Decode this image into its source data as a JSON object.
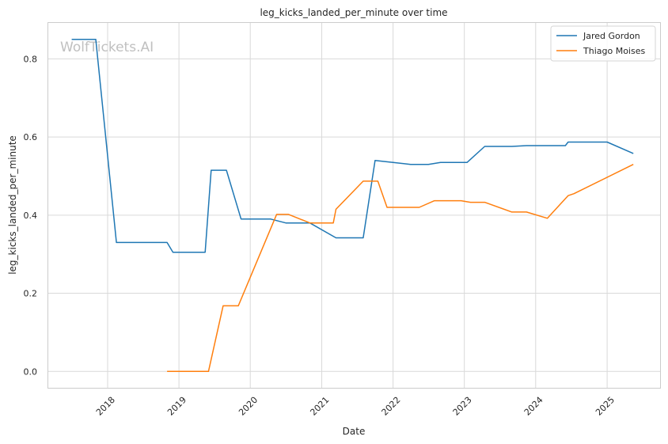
{
  "chart_data": {
    "type": "line",
    "title": "leg_kicks_landed_per_minute over time",
    "xlabel": "Date",
    "ylabel": "leg_kicks_landed_per_minute",
    "watermark": "WolfTickets.AI",
    "x_ticks": [
      "2018",
      "2019",
      "2020",
      "2021",
      "2022",
      "2023",
      "2024",
      "2025"
    ],
    "y_ticks": [
      "0.0",
      "0.2",
      "0.4",
      "0.6",
      "0.8"
    ],
    "xlim": [
      "2017-03-01",
      "2025-10-01"
    ],
    "ylim": [
      -0.043,
      0.893
    ],
    "grid": true,
    "legend_position": "top-right",
    "series": [
      {
        "name": "Jared Gordon",
        "color": "#1f77b4",
        "points": [
          [
            "2017-07-01",
            0.85
          ],
          [
            "2017-11-01",
            0.85
          ],
          [
            "2018-02-15",
            0.33
          ],
          [
            "2018-11-01",
            0.33
          ],
          [
            "2018-12-01",
            0.305
          ],
          [
            "2019-05-15",
            0.305
          ],
          [
            "2019-06-15",
            0.515
          ],
          [
            "2019-09-01",
            0.515
          ],
          [
            "2019-11-15",
            0.39
          ],
          [
            "2020-04-15",
            0.39
          ],
          [
            "2020-07-01",
            0.38
          ],
          [
            "2020-11-01",
            0.38
          ],
          [
            "2021-03-15",
            0.342
          ],
          [
            "2021-08-01",
            0.342
          ],
          [
            "2021-10-01",
            0.54
          ],
          [
            "2022-01-01",
            0.535
          ],
          [
            "2022-04-01",
            0.53
          ],
          [
            "2022-07-01",
            0.53
          ],
          [
            "2022-09-01",
            0.535
          ],
          [
            "2023-01-15",
            0.535
          ],
          [
            "2023-04-15",
            0.576
          ],
          [
            "2023-09-01",
            0.576
          ],
          [
            "2023-11-15",
            0.578
          ],
          [
            "2024-06-01",
            0.578
          ],
          [
            "2024-06-15",
            0.587
          ],
          [
            "2025-01-01",
            0.587
          ],
          [
            "2025-05-15",
            0.558
          ]
        ]
      },
      {
        "name": "Thiago Moises",
        "color": "#ff7f0e",
        "points": [
          [
            "2018-11-01",
            0.0
          ],
          [
            "2019-06-01",
            0.0
          ],
          [
            "2019-08-15",
            0.168
          ],
          [
            "2019-11-01",
            0.168
          ],
          [
            "2020-05-15",
            0.402
          ],
          [
            "2020-07-15",
            0.402
          ],
          [
            "2020-11-01",
            0.38
          ],
          [
            "2021-03-01",
            0.38
          ],
          [
            "2021-03-15",
            0.415
          ],
          [
            "2021-08-01",
            0.487
          ],
          [
            "2021-10-15",
            0.487
          ],
          [
            "2021-12-01",
            0.42
          ],
          [
            "2022-05-15",
            0.42
          ],
          [
            "2022-08-01",
            0.437
          ],
          [
            "2022-12-15",
            0.437
          ],
          [
            "2023-02-01",
            0.433
          ],
          [
            "2023-04-15",
            0.433
          ],
          [
            "2023-09-01",
            0.408
          ],
          [
            "2023-11-15",
            0.408
          ],
          [
            "2024-03-01",
            0.392
          ],
          [
            "2024-06-15",
            0.45
          ],
          [
            "2024-07-15",
            0.455
          ],
          [
            "2025-05-15",
            0.53
          ]
        ]
      }
    ]
  }
}
